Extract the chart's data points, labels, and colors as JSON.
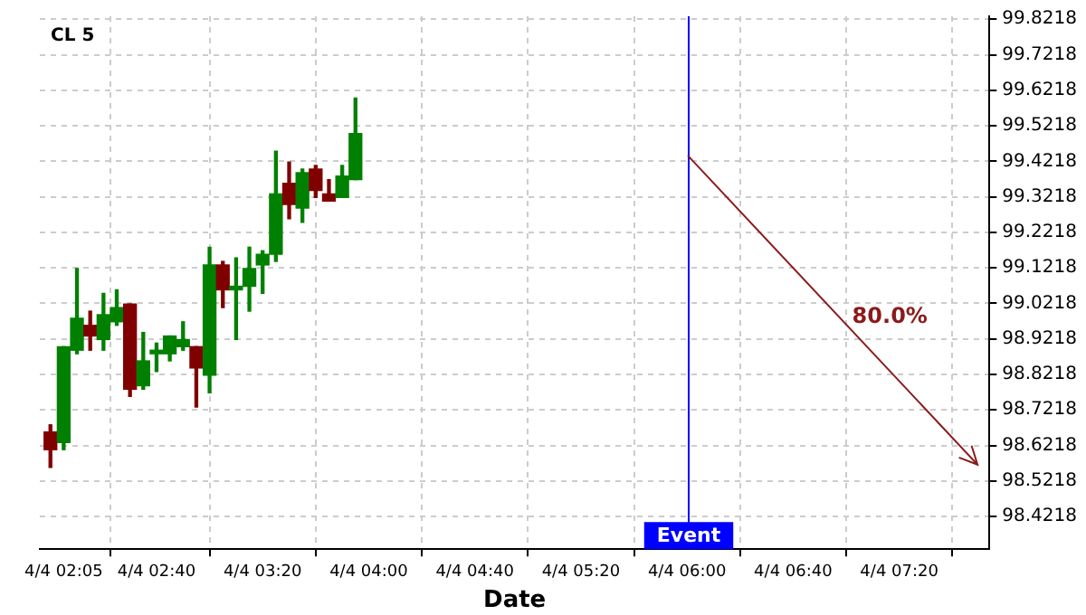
{
  "chart_data": {
    "type": "candlestick",
    "title": "CL 5",
    "xlabel": "Date",
    "x": [
      "--04-04T02:00",
      "--04-04T02:05",
      "--04-04T02:10",
      "--04-04T02:15",
      "--04-04T02:20",
      "--04-04T02:25",
      "--04-04T02:30",
      "--04-04T02:35",
      "--04-04T02:40",
      "--04-04T02:45",
      "--04-04T02:50",
      "--04-04T02:55",
      "--04-04T03:00",
      "--04-04T03:05",
      "--04-04T03:10",
      "--04-04T03:15",
      "--04-04T03:20",
      "--04-04T03:25",
      "--04-04T03:30",
      "--04-04T03:35",
      "--04-04T03:40",
      "--04-04T03:45",
      "--04-04T03:50",
      "--04-04T03:55"
    ],
    "ohlc": [
      [
        98.66,
        98.68,
        98.56,
        98.61
      ],
      [
        98.63,
        98.9,
        98.61,
        98.9
      ],
      [
        98.89,
        99.12,
        98.88,
        98.98
      ],
      [
        98.96,
        99.0,
        98.89,
        98.93
      ],
      [
        98.92,
        99.05,
        98.89,
        98.99
      ],
      [
        98.97,
        99.06,
        98.96,
        99.01
      ],
      [
        99.02,
        99.02,
        98.76,
        98.78
      ],
      [
        98.79,
        98.94,
        98.78,
        98.86
      ],
      [
        98.88,
        98.91,
        98.83,
        98.89
      ],
      [
        98.88,
        98.93,
        98.86,
        98.93
      ],
      [
        98.9,
        98.97,
        98.89,
        98.92
      ],
      [
        98.9,
        98.9,
        98.73,
        98.84
      ],
      [
        98.82,
        99.18,
        98.77,
        99.13
      ],
      [
        99.13,
        99.14,
        99.01,
        99.06
      ],
      [
        99.06,
        99.15,
        98.92,
        99.07
      ],
      [
        99.07,
        99.18,
        99.0,
        99.12
      ],
      [
        99.13,
        99.17,
        99.05,
        99.16
      ],
      [
        99.16,
        99.45,
        99.14,
        99.33
      ],
      [
        99.36,
        99.42,
        99.26,
        99.3
      ],
      [
        99.29,
        99.4,
        99.25,
        99.39
      ],
      [
        99.4,
        99.41,
        99.32,
        99.34
      ],
      [
        99.33,
        99.37,
        99.31,
        99.31
      ],
      [
        99.32,
        99.41,
        99.32,
        99.38
      ],
      [
        99.37,
        99.6,
        99.37,
        99.5
      ]
    ],
    "colors": [
      "#800000",
      "#008000",
      "#008000",
      "#800000",
      "#008000",
      "#008000",
      "#800000",
      "#008000",
      "#008000",
      "#008000",
      "#008000",
      "#800000",
      "#008000",
      "#800000",
      "#008000",
      "#008000",
      "#008000",
      "#008000",
      "#800000",
      "#008000",
      "#800000",
      "#800000",
      "#008000",
      "#008000"
    ],
    "ref_lines": [
      {
        "axis": "x",
        "value": "--04-04T06:00",
        "label": "Event",
        "color": "#0000ff"
      }
    ],
    "annotations": [
      "80.0%"
    ],
    "xlim": [
      "--04-04T01:56",
      "--04-04T07:54"
    ],
    "xticks": [
      {
        "value": "--04-04T02:05",
        "label": "4/4 02:05"
      },
      {
        "value": "--04-04T02:40",
        "label": "4/4 02:40"
      },
      {
        "value": "--04-04T03:20",
        "label": "4/4 03:20"
      },
      {
        "value": "--04-04T04:00",
        "label": "4/4 04:00"
      },
      {
        "value": "--04-04T04:40",
        "label": "4/4 04:40"
      },
      {
        "value": "--04-04T05:20",
        "label": "4/4 05:20"
      },
      {
        "value": "--04-04T06:00",
        "label": "4/4 06:00"
      },
      {
        "value": "--04-04T06:40",
        "label": "4/4 06:40"
      },
      {
        "value": "--04-04T07:20",
        "label": "4/4 07:20"
      }
    ],
    "ylim": [
      98.33,
      99.83
    ],
    "yticks": [
      98.4218,
      98.5218,
      98.6218,
      98.7218,
      98.8218,
      98.9218,
      99.0218,
      99.1218,
      99.2218,
      99.3218,
      99.4218,
      99.5218,
      99.6218,
      99.7218,
      99.8218
    ],
    "grid": true,
    "legend": false
  }
}
